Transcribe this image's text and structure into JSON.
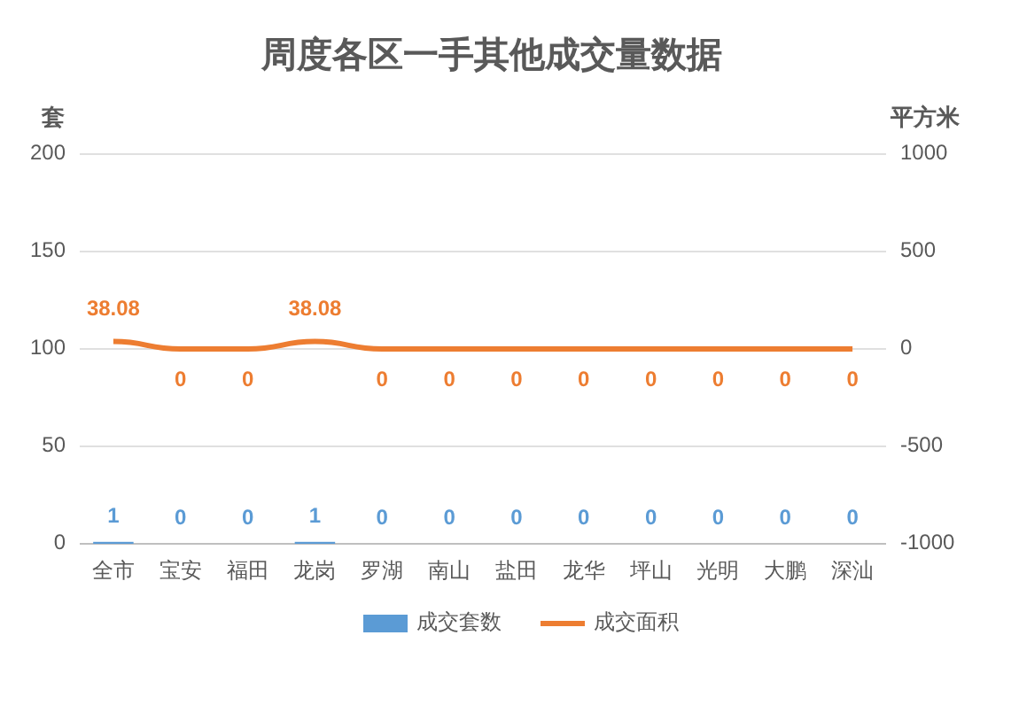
{
  "chart_data": {
    "type": "bar",
    "title": "周度各区一手其他成交量数据",
    "ylabel": "套",
    "y2label": "平方米",
    "categories": [
      "全市",
      "宝安",
      "福田",
      "龙岗",
      "罗湖",
      "南山",
      "盐田",
      "龙华",
      "坪山",
      "光明",
      "大鹏",
      "深汕"
    ],
    "series": [
      {
        "name": "成交套数",
        "color": "#5b9bd5",
        "values": [
          1,
          0,
          0,
          1,
          0,
          0,
          0,
          0,
          0,
          0,
          0,
          0
        ]
      },
      {
        "name": "成交面积",
        "type": "line",
        "axis": "y2",
        "color": "#ed7d31",
        "values": [
          38.08,
          0,
          0,
          38.08,
          0,
          0,
          0,
          0,
          0,
          0,
          0,
          0
        ]
      }
    ],
    "ylim": [
      0,
      200
    ],
    "yticks": [
      0,
      50,
      100,
      150,
      200
    ],
    "y2lim": [
      -1000,
      1000
    ],
    "y2ticks": [
      -1000,
      -500,
      0,
      500,
      1000
    ],
    "grid": "y",
    "legend": "bottom",
    "data_labels": true
  }
}
